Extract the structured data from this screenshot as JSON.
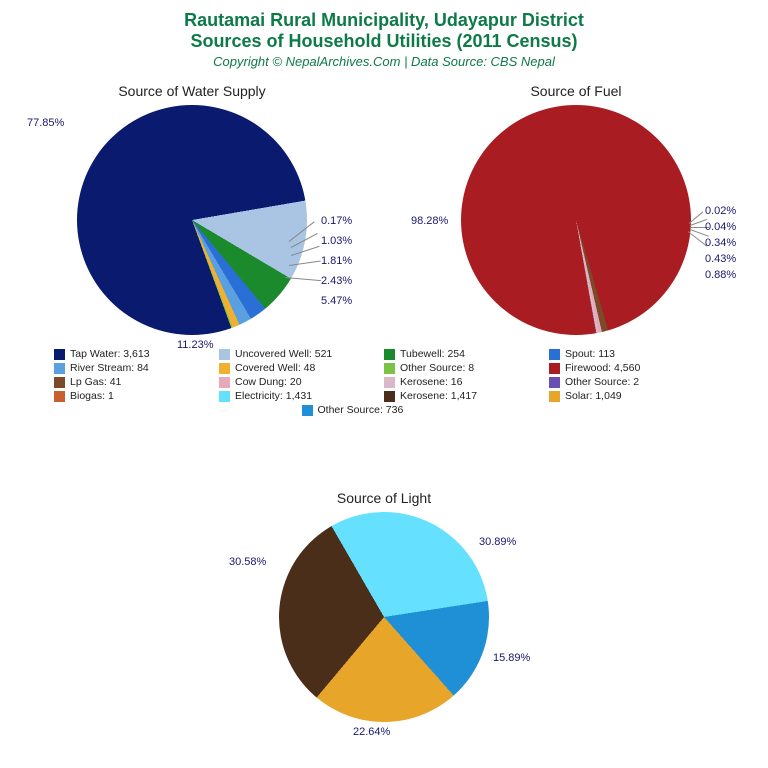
{
  "title_color": "#0d7a47",
  "label_color": "#17176e",
  "text_color": "#222222",
  "title_line1": "Rautamai Rural Municipality, Udayapur District",
  "title_line2": "Sources of Household Utilities (2011 Census)",
  "copyright": "Copyright © NepalArchives.Com | Data Source: CBS Nepal",
  "water": {
    "title": "Source of Water Supply",
    "slices": [
      {
        "pct": 77.85,
        "color": "#0a1a6e",
        "label": "77.85%"
      },
      {
        "pct": 11.23,
        "color": "#aac5e3",
        "label": "11.23%"
      },
      {
        "pct": 5.47,
        "color": "#1b8a2c",
        "label": "5.47%"
      },
      {
        "pct": 2.43,
        "color": "#2a6fd6",
        "label": "2.43%"
      },
      {
        "pct": 1.81,
        "color": "#5aa0e0",
        "label": "1.81%"
      },
      {
        "pct": 1.03,
        "color": "#f0b030",
        "label": "1.03%"
      },
      {
        "pct": 0.17,
        "color": "#7cc247",
        "label": "0.17%"
      }
    ]
  },
  "fuel": {
    "title": "Source of Fuel",
    "slices": [
      {
        "pct": 98.28,
        "color": "#a91d22",
        "label": "98.28%"
      },
      {
        "pct": 0.88,
        "color": "#7a4a2a",
        "label": "0.88%"
      },
      {
        "pct": 0.43,
        "color": "#e7a9b8",
        "label": "0.43%"
      },
      {
        "pct": 0.34,
        "color": "#d9b8c8",
        "label": "0.34%"
      },
      {
        "pct": 0.04,
        "color": "#6a4fb5",
        "label": "0.04%"
      },
      {
        "pct": 0.02,
        "color": "#c95f2f",
        "label": "0.02%"
      }
    ]
  },
  "light": {
    "title": "Source of Light",
    "slices": [
      {
        "pct": 30.89,
        "color": "#66e0ff",
        "label": "30.89%"
      },
      {
        "pct": 15.89,
        "color": "#1f8fd6",
        "label": "15.89%"
      },
      {
        "pct": 22.64,
        "color": "#e7a52a",
        "label": "22.64%"
      },
      {
        "pct": 30.58,
        "color": "#4a2e1a",
        "label": "30.58%"
      }
    ]
  },
  "legend": [
    {
      "color": "#0a1a6e",
      "text": "Tap Water: 3,613"
    },
    {
      "color": "#aac5e3",
      "text": "Uncovered Well: 521"
    },
    {
      "color": "#1b8a2c",
      "text": "Tubewell: 254"
    },
    {
      "color": "#2a6fd6",
      "text": "Spout: 113"
    },
    {
      "color": "#5aa0e0",
      "text": "River Stream: 84"
    },
    {
      "color": "#f0b030",
      "text": "Covered Well: 48"
    },
    {
      "color": "#7cc247",
      "text": "Other Source: 8"
    },
    {
      "color": "#a91d22",
      "text": "Firewood: 4,560"
    },
    {
      "color": "#7a4a2a",
      "text": "Lp Gas: 41"
    },
    {
      "color": "#e7a9b8",
      "text": "Cow Dung: 20"
    },
    {
      "color": "#d9b8c8",
      "text": "Kerosene: 16"
    },
    {
      "color": "#6a4fb5",
      "text": "Other Source: 2"
    },
    {
      "color": "#c95f2f",
      "text": "Biogas: 1"
    },
    {
      "color": "#66e0ff",
      "text": "Electricity: 1,431"
    },
    {
      "color": "#4a2e1a",
      "text": "Kerosene: 1,417"
    },
    {
      "color": "#e7a52a",
      "text": "Solar: 1,049"
    },
    {
      "color": "#1f8fd6",
      "text": "Other Source: 736"
    }
  ]
}
